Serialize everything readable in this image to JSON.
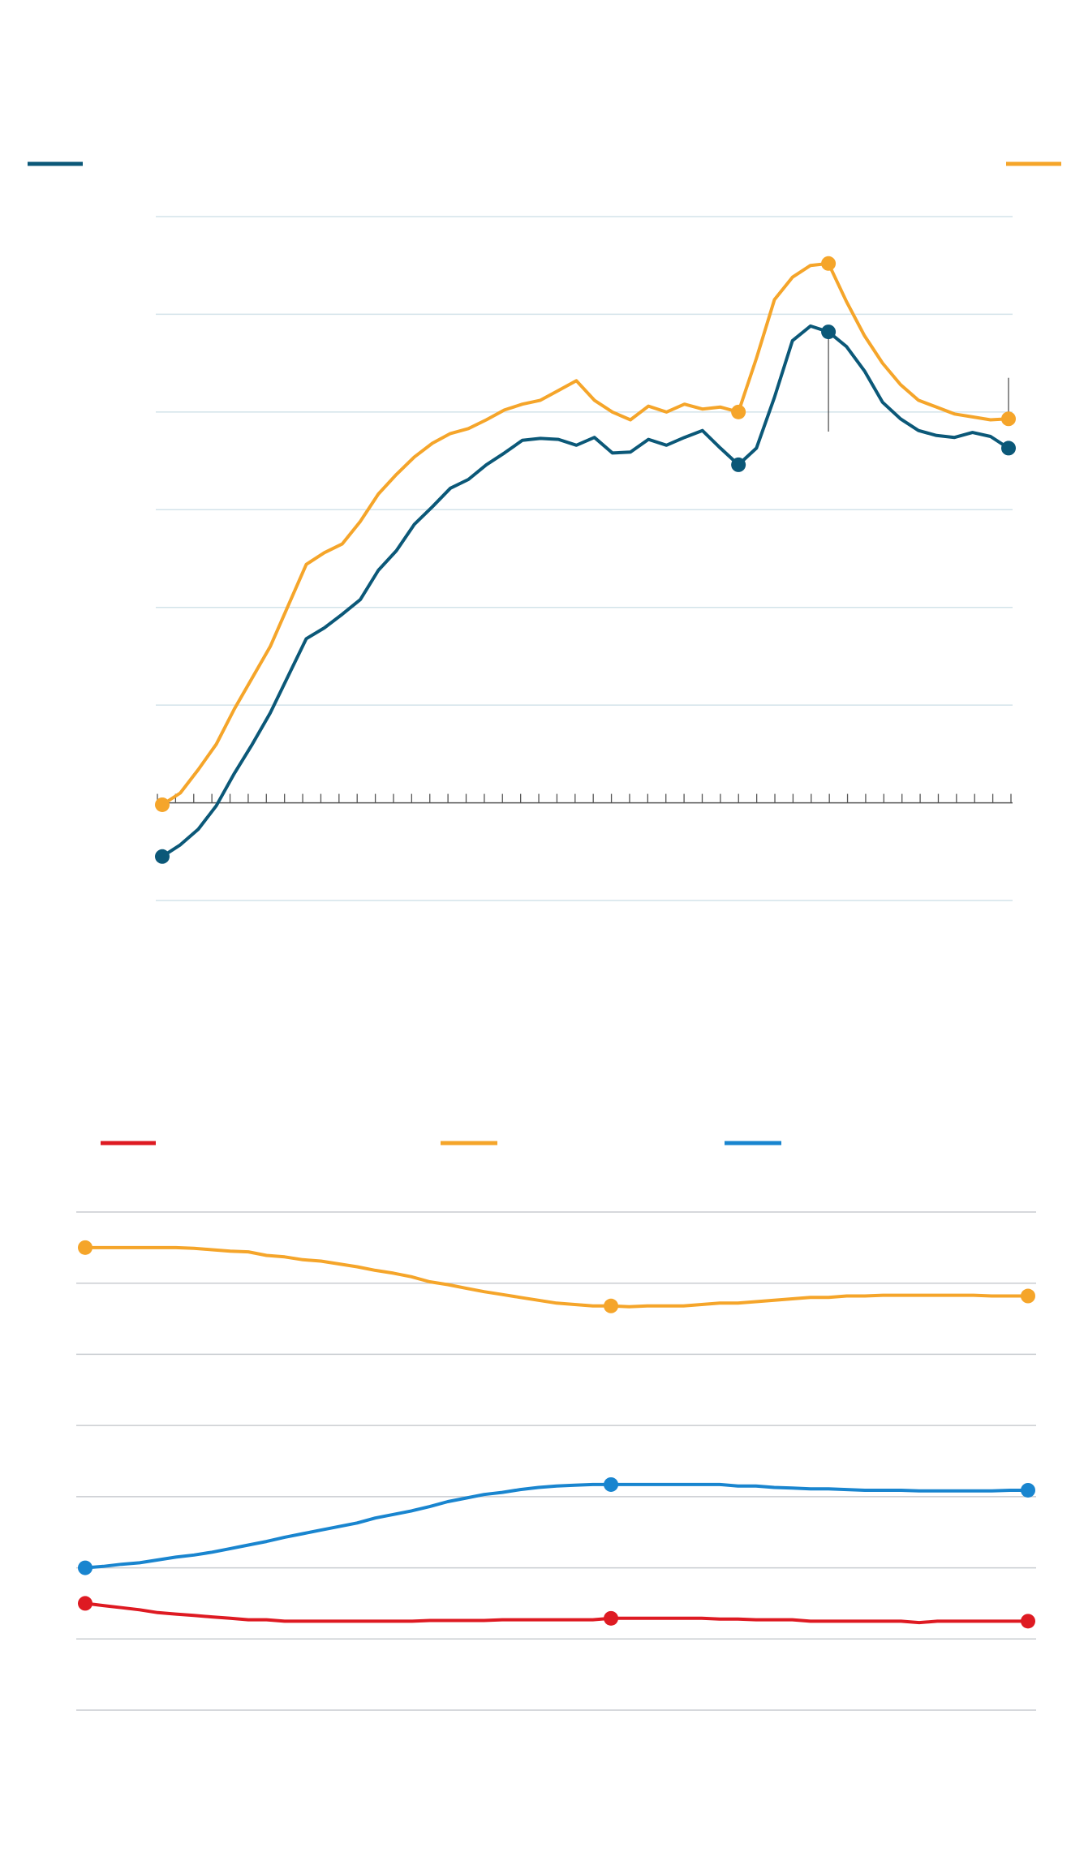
{
  "colors": {
    "dark_teal": "#0b5878",
    "orange": "#f5a52a",
    "red": "#de1a22",
    "blue": "#1985cf",
    "gridline_top": "#d3e3ea",
    "gridline_bottom": "#c9ccd0",
    "axis": "#555555"
  },
  "chart_data": [
    {
      "type": "line",
      "title": "",
      "xlabel": "",
      "ylabel": "",
      "grid": true,
      "legend": "top",
      "x_index_range": [
        0,
        47
      ],
      "ylim": [
        -1,
        6
      ],
      "y_gridlines": [
        -1,
        1,
        2,
        3,
        4,
        5,
        6
      ],
      "zero_axis_ticks": 48,
      "series": [
        {
          "color": "#0b5878",
          "values": [
            -0.55,
            -0.43,
            -0.27,
            -0.03,
            0.3,
            0.6,
            0.92,
            1.3,
            1.68,
            1.79,
            1.93,
            2.08,
            2.38,
            2.58,
            2.85,
            3.03,
            3.22,
            3.31,
            3.46,
            3.58,
            3.71,
            3.73,
            3.72,
            3.66,
            3.74,
            3.58,
            3.59,
            3.72,
            3.66,
            3.74,
            3.81,
            3.63,
            3.46,
            3.63,
            4.15,
            4.73,
            4.88,
            4.82,
            4.67,
            4.42,
            4.1,
            3.93,
            3.81,
            3.76,
            3.74,
            3.79,
            3.75,
            3.63
          ],
          "markers": [
            0,
            32,
            37,
            47
          ]
        },
        {
          "color": "#f5a52a",
          "values": [
            -0.02,
            0.1,
            0.34,
            0.6,
            0.96,
            1.28,
            1.6,
            2.02,
            2.44,
            2.56,
            2.65,
            2.88,
            3.16,
            3.36,
            3.54,
            3.68,
            3.78,
            3.83,
            3.92,
            4.02,
            4.08,
            4.12,
            4.22,
            4.32,
            4.12,
            4.0,
            3.92,
            4.06,
            4.0,
            4.08,
            4.03,
            4.05,
            4.0,
            4.55,
            5.15,
            5.38,
            5.5,
            5.52,
            5.13,
            4.78,
            4.5,
            4.28,
            4.12,
            4.05,
            3.98,
            3.95,
            3.92,
            3.93
          ],
          "markers": [
            0,
            32,
            37,
            47
          ]
        }
      ],
      "annotations": [
        {
          "x": 37,
          "from": 4.88,
          "to": 3.8
        },
        {
          "x": 47,
          "from": 3.95,
          "to": 4.35
        }
      ]
    },
    {
      "type": "line",
      "title": "",
      "xlabel": "",
      "ylabel": "",
      "grid": true,
      "legend": "top",
      "x_index_range": [
        0,
        52
      ],
      "ylim": [
        0,
        7
      ],
      "y_gridlines": [
        0,
        1,
        2,
        3,
        4,
        5,
        6,
        7
      ],
      "series": [
        {
          "color": "#de1a22",
          "values": [
            1.5,
            1.47,
            1.44,
            1.41,
            1.37,
            1.35,
            1.33,
            1.31,
            1.29,
            1.27,
            1.27,
            1.25,
            1.25,
            1.25,
            1.25,
            1.25,
            1.25,
            1.25,
            1.25,
            1.26,
            1.26,
            1.26,
            1.26,
            1.27,
            1.27,
            1.27,
            1.27,
            1.27,
            1.27,
            1.29,
            1.29,
            1.29,
            1.29,
            1.29,
            1.29,
            1.28,
            1.28,
            1.27,
            1.27,
            1.27,
            1.25,
            1.25,
            1.25,
            1.25,
            1.25,
            1.25,
            1.23,
            1.25,
            1.25,
            1.25,
            1.25,
            1.25,
            1.25
          ],
          "markers": [
            0,
            29,
            52
          ]
        },
        {
          "color": "#f5a52a",
          "values": [
            6.5,
            6.5,
            6.5,
            6.5,
            6.5,
            6.5,
            6.49,
            6.47,
            6.45,
            6.44,
            6.39,
            6.37,
            6.33,
            6.31,
            6.27,
            6.23,
            6.18,
            6.14,
            6.09,
            6.02,
            5.98,
            5.93,
            5.88,
            5.84,
            5.8,
            5.76,
            5.72,
            5.7,
            5.68,
            5.68,
            5.67,
            5.68,
            5.68,
            5.68,
            5.7,
            5.72,
            5.72,
            5.74,
            5.76,
            5.78,
            5.8,
            5.8,
            5.82,
            5.82,
            5.83,
            5.83,
            5.83,
            5.83,
            5.83,
            5.83,
            5.82,
            5.82,
            5.82
          ],
          "markers": [
            0,
            29,
            52
          ]
        },
        {
          "color": "#1985cf",
          "values": [
            2.0,
            2.02,
            2.05,
            2.07,
            2.11,
            2.15,
            2.18,
            2.22,
            2.27,
            2.32,
            2.37,
            2.43,
            2.48,
            2.53,
            2.58,
            2.63,
            2.7,
            2.75,
            2.8,
            2.86,
            2.93,
            2.98,
            3.03,
            3.06,
            3.1,
            3.13,
            3.15,
            3.16,
            3.17,
            3.17,
            3.17,
            3.17,
            3.17,
            3.17,
            3.17,
            3.17,
            3.15,
            3.15,
            3.13,
            3.12,
            3.11,
            3.11,
            3.1,
            3.09,
            3.09,
            3.09,
            3.08,
            3.08,
            3.08,
            3.08,
            3.08,
            3.09,
            3.09
          ],
          "markers": [
            0,
            29,
            52
          ]
        }
      ]
    }
  ]
}
